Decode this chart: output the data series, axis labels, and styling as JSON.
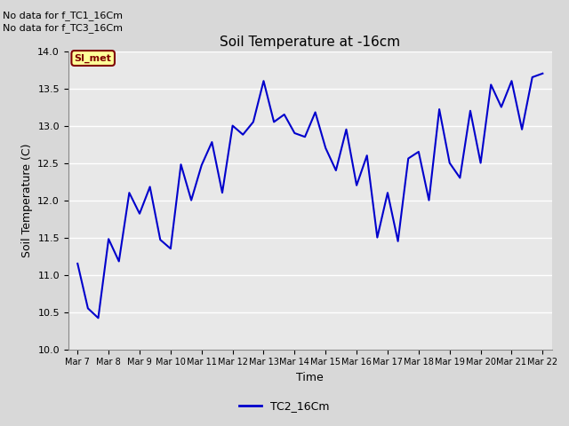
{
  "title": "Soil Temperature at -16cm",
  "xlabel": "Time",
  "ylabel": "Soil Temperature (C)",
  "ylim": [
    10.0,
    14.0
  ],
  "yticks": [
    10.0,
    10.5,
    11.0,
    11.5,
    12.0,
    12.5,
    13.0,
    13.5,
    14.0
  ],
  "line_color": "#0000cc",
  "line_label": "TC2_16Cm",
  "fig_bg_color": "#d8d8d8",
  "plot_bg_color": "#e8e8e8",
  "grid_color": "#ffffff",
  "no_data_labels": [
    "No data for f_TC1_16Cm",
    "No data for f_TC3_16Cm"
  ],
  "si_met_label": "SI_met",
  "si_met_bg": "#ffff99",
  "si_met_border": "#800000",
  "si_met_text_color": "#800000",
  "xtick_labels": [
    "Mar 7",
    "Mar 8",
    "Mar 9",
    "Mar 10",
    "Mar 11",
    "Mar 12",
    "Mar 13",
    "Mar 14",
    "Mar 15",
    "Mar 16",
    "Mar 17",
    "Mar 18",
    "Mar 19",
    "Mar 20",
    "Mar 21",
    "Mar 22"
  ],
  "y_values": [
    11.15,
    10.55,
    10.42,
    11.48,
    11.18,
    12.1,
    11.82,
    12.18,
    11.47,
    11.35,
    12.48,
    12.0,
    12.47,
    12.78,
    12.1,
    13.0,
    12.88,
    13.05,
    13.6,
    13.05,
    13.15,
    12.9,
    12.85,
    13.18,
    12.7,
    12.4,
    12.95,
    12.2,
    12.6,
    11.5,
    12.1,
    11.45,
    12.56,
    12.65,
    12.0,
    13.22,
    12.5,
    12.3,
    13.2,
    12.5,
    13.55,
    13.25,
    13.6,
    12.95,
    13.65,
    13.7
  ]
}
